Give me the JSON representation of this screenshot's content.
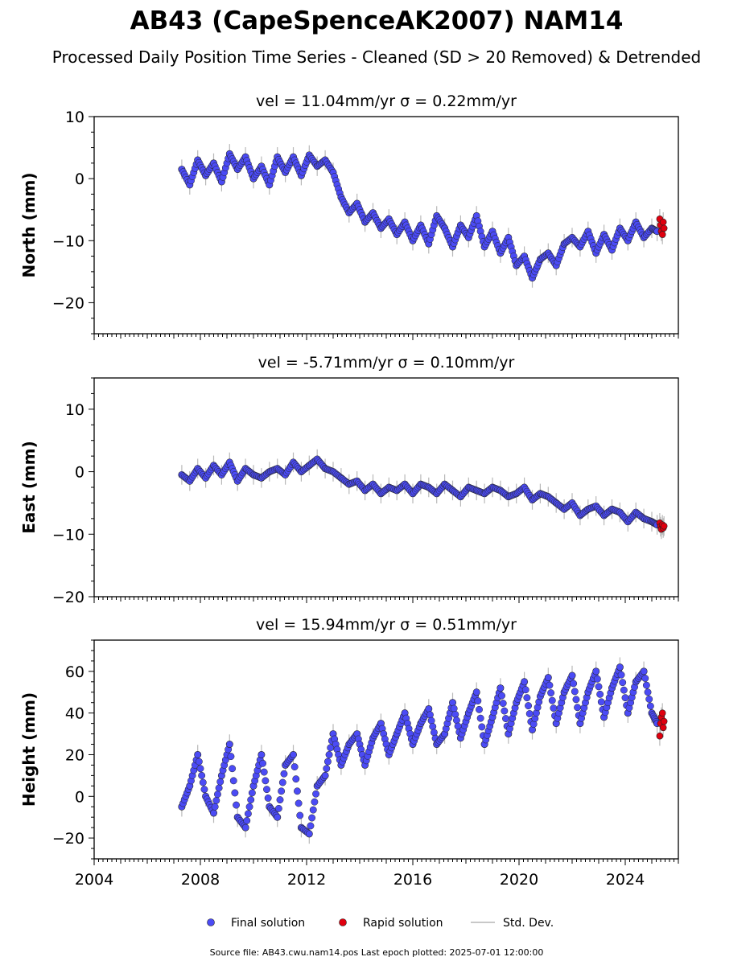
{
  "title": "AB43 (CapeSpenceAK2007) NAM14",
  "subtitle": "Processed Daily Position Time Series - Cleaned (SD > 20 Removed) & Detrended",
  "footer": "Source file: AB43.cwu.nam14.pos  Last epoch plotted: 2025-07-01 12:00:00",
  "legend": {
    "final": "Final solution",
    "rapid": "Rapid solution",
    "std": "Std. Dev."
  },
  "colors": {
    "final": "#4b4bf5",
    "rapid": "#e0000f",
    "std": "#b8b8b8"
  },
  "chart_data": [
    {
      "type": "scatter",
      "title": "vel = 11.04mm/yr   σ = 0.22mm/yr",
      "ylabel": "North (mm)",
      "xlim": [
        2004,
        2026
      ],
      "ylim": [
        -25,
        10
      ],
      "yticks": [
        10,
        0,
        -10,
        -20
      ],
      "series": [
        {
          "name": "Final solution",
          "x": [
            2007.3,
            2007.6,
            2007.9,
            2008.2,
            2008.5,
            2008.8,
            2009.1,
            2009.4,
            2009.7,
            2010.0,
            2010.3,
            2010.6,
            2010.9,
            2011.2,
            2011.5,
            2011.8,
            2012.1,
            2012.4,
            2012.7,
            2013.0,
            2013.3,
            2013.6,
            2013.9,
            2014.2,
            2014.5,
            2014.8,
            2015.1,
            2015.4,
            2015.7,
            2016.0,
            2016.3,
            2016.6,
            2016.9,
            2017.2,
            2017.5,
            2017.8,
            2018.1,
            2018.4,
            2018.7,
            2019.0,
            2019.3,
            2019.6,
            2019.9,
            2020.2,
            2020.5,
            2020.8,
            2021.1,
            2021.4,
            2021.7,
            2022.0,
            2022.3,
            2022.6,
            2022.9,
            2023.2,
            2023.5,
            2023.8,
            2024.1,
            2024.4,
            2024.7,
            2025.0,
            2025.2
          ],
          "y": [
            1.5,
            -1.0,
            3.0,
            0.5,
            2.5,
            -0.5,
            4.0,
            1.5,
            3.5,
            0.0,
            2.0,
            -1.0,
            3.5,
            1.0,
            3.5,
            0.5,
            3.8,
            2.0,
            3.0,
            1.0,
            -3.0,
            -5.5,
            -4.0,
            -7.0,
            -5.5,
            -8.0,
            -6.5,
            -9.0,
            -7.0,
            -10.0,
            -7.5,
            -10.5,
            -6.0,
            -8.0,
            -11.0,
            -7.5,
            -9.5,
            -6.0,
            -11.0,
            -8.5,
            -12.0,
            -9.5,
            -14.0,
            -12.5,
            -16.0,
            -13.0,
            -12.0,
            -14.0,
            -10.5,
            -9.5,
            -11.0,
            -8.5,
            -12.0,
            -9.0,
            -11.5,
            -8.0,
            -10.0,
            -7.0,
            -9.5,
            -8.0,
            -8.5
          ]
        },
        {
          "name": "Rapid solution",
          "x": [
            2025.3,
            2025.33,
            2025.36,
            2025.4,
            2025.43,
            2025.46
          ],
          "y": [
            -6.5,
            -7.5,
            -8.5,
            -9.0,
            -7.0,
            -8.0
          ]
        }
      ]
    },
    {
      "type": "scatter",
      "title": "vel = -5.71mm/yr   σ = 0.10mm/yr",
      "ylabel": "East (mm)",
      "xlim": [
        2004,
        2026
      ],
      "ylim": [
        -20,
        15
      ],
      "yticks": [
        10,
        0,
        -10,
        -20
      ],
      "series": [
        {
          "name": "Final solution",
          "x": [
            2007.3,
            2007.6,
            2007.9,
            2008.2,
            2008.5,
            2008.8,
            2009.1,
            2009.4,
            2009.7,
            2010.0,
            2010.3,
            2010.6,
            2010.9,
            2011.2,
            2011.5,
            2011.8,
            2012.1,
            2012.4,
            2012.7,
            2013.0,
            2013.3,
            2013.6,
            2013.9,
            2014.2,
            2014.5,
            2014.8,
            2015.1,
            2015.4,
            2015.7,
            2016.0,
            2016.3,
            2016.6,
            2016.9,
            2017.2,
            2017.5,
            2017.8,
            2018.1,
            2018.4,
            2018.7,
            2019.0,
            2019.3,
            2019.6,
            2019.9,
            2020.2,
            2020.5,
            2020.8,
            2021.1,
            2021.4,
            2021.7,
            2022.0,
            2022.3,
            2022.6,
            2022.9,
            2023.2,
            2023.5,
            2023.8,
            2024.1,
            2024.4,
            2024.7,
            2025.0,
            2025.2
          ],
          "y": [
            -0.5,
            -1.5,
            0.5,
            -1.0,
            1.0,
            -0.5,
            1.5,
            -1.5,
            0.5,
            -0.5,
            -1.0,
            0.0,
            0.5,
            -0.5,
            1.5,
            0.0,
            1.0,
            2.0,
            0.5,
            0.0,
            -1.0,
            -2.0,
            -1.5,
            -3.0,
            -2.0,
            -3.5,
            -2.5,
            -3.0,
            -2.0,
            -3.5,
            -2.0,
            -2.5,
            -3.5,
            -2.0,
            -3.0,
            -4.0,
            -2.5,
            -3.0,
            -3.5,
            -2.5,
            -3.0,
            -4.0,
            -3.5,
            -2.5,
            -4.5,
            -3.5,
            -4.0,
            -5.0,
            -6.0,
            -5.0,
            -7.0,
            -6.0,
            -5.5,
            -7.0,
            -6.0,
            -6.5,
            -8.0,
            -6.5,
            -7.5,
            -8.0,
            -8.5
          ]
        },
        {
          "name": "Rapid solution",
          "x": [
            2025.3,
            2025.33,
            2025.36,
            2025.4,
            2025.43,
            2025.46
          ],
          "y": [
            -8.2,
            -8.8,
            -9.2,
            -8.5,
            -9.0,
            -8.7
          ]
        }
      ]
    },
    {
      "type": "scatter",
      "title": "vel = 15.94mm/yr   σ = 0.51mm/yr",
      "ylabel": "Height (mm)",
      "xlim": [
        2004,
        2026
      ],
      "ylim": [
        -30,
        75
      ],
      "yticks": [
        60,
        40,
        20,
        0,
        -20
      ],
      "xticks": [
        2004,
        2008,
        2012,
        2016,
        2020,
        2024
      ],
      "series": [
        {
          "name": "Final solution",
          "x": [
            2007.3,
            2007.6,
            2007.9,
            2008.2,
            2008.5,
            2008.8,
            2009.1,
            2009.4,
            2009.7,
            2010.0,
            2010.3,
            2010.6,
            2010.9,
            2011.2,
            2011.5,
            2011.8,
            2012.1,
            2012.4,
            2012.7,
            2013.0,
            2013.3,
            2013.6,
            2013.9,
            2014.2,
            2014.5,
            2014.8,
            2015.1,
            2015.4,
            2015.7,
            2016.0,
            2016.3,
            2016.6,
            2016.9,
            2017.2,
            2017.5,
            2017.8,
            2018.1,
            2018.4,
            2018.7,
            2019.0,
            2019.3,
            2019.6,
            2019.9,
            2020.2,
            2020.5,
            2020.8,
            2021.1,
            2021.4,
            2021.7,
            2022.0,
            2022.3,
            2022.6,
            2022.9,
            2023.2,
            2023.5,
            2023.8,
            2024.1,
            2024.4,
            2024.7,
            2025.0,
            2025.2
          ],
          "y": [
            -5,
            5,
            20,
            0,
            -8,
            10,
            25,
            -10,
            -15,
            5,
            20,
            -5,
            -10,
            15,
            20,
            -15,
            -18,
            5,
            10,
            30,
            15,
            25,
            30,
            15,
            28,
            35,
            20,
            30,
            40,
            25,
            35,
            42,
            25,
            30,
            45,
            28,
            40,
            50,
            25,
            38,
            52,
            30,
            45,
            55,
            32,
            48,
            57,
            35,
            50,
            58,
            35,
            50,
            60,
            38,
            52,
            62,
            40,
            55,
            60,
            40,
            35
          ]
        },
        {
          "name": "Rapid solution",
          "x": [
            2025.3,
            2025.33,
            2025.36,
            2025.4,
            2025.43,
            2025.46
          ],
          "y": [
            29,
            35,
            38,
            40,
            33,
            36
          ]
        }
      ]
    }
  ]
}
